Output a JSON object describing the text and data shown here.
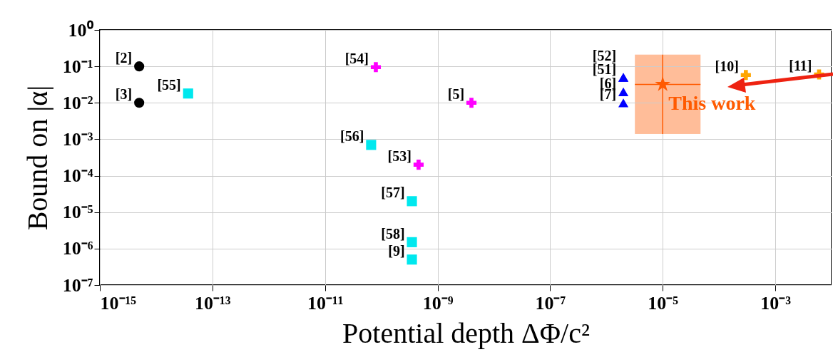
{
  "chart_data": {
    "type": "scatter",
    "xlabel": "Potential depth ΔΦ/c²",
    "ylabel": "Bound on |α|",
    "log": "xy",
    "grid": true,
    "xlim": [
      1e-15,
      0.01
    ],
    "xticks": [
      {
        "value": 1e-15,
        "label": "10⁻¹⁵"
      },
      {
        "value": 1e-13,
        "label": "10⁻¹³"
      },
      {
        "value": 1e-11,
        "label": "10⁻¹¹"
      },
      {
        "value": 1e-09,
        "label": "10⁻⁹"
      },
      {
        "value": 1e-07,
        "label": "10⁻⁷"
      },
      {
        "value": 1e-05,
        "label": "10⁻⁵"
      },
      {
        "value": 0.001,
        "label": "10⁻³"
      }
    ],
    "ylim": [
      1e-07,
      1
    ],
    "yticks": [
      {
        "value": 1,
        "label": "10⁰"
      },
      {
        "value": 0.1,
        "label": "10⁻¹"
      },
      {
        "value": 0.01,
        "label": "10⁻²"
      },
      {
        "value": 0.001,
        "label": "10⁻³"
      },
      {
        "value": 0.0001,
        "label": "10⁻⁴"
      },
      {
        "value": 1e-05,
        "label": "10⁻⁵"
      },
      {
        "value": 1e-06,
        "label": "10⁻⁶"
      },
      {
        "value": 1e-07,
        "label": "10⁻⁷"
      }
    ],
    "series": [
      {
        "color": "#000000",
        "marker": "circle",
        "x": [
          5e-15,
          5e-15
        ],
        "values": [
          0.1,
          0.01
        ]
      },
      {
        "color": "#00e8ee",
        "marker": "square",
        "x": [
          3.7e-14,
          6.6e-11,
          3.5e-10,
          3.5e-10,
          3.5e-10
        ],
        "values": [
          0.018,
          0.0007,
          2e-05,
          1.5e-06,
          5e-07
        ]
      },
      {
        "color": "#ff00ff",
        "marker": "cross",
        "x": [
          8e-11,
          4e-09,
          4.6e-10
        ],
        "values": [
          0.095,
          0.01,
          0.0002
        ]
      },
      {
        "color": "#0000ff",
        "marker": "triangle",
        "x": [
          2e-06,
          2e-06,
          2e-06,
          2e-06
        ],
        "values": [
          0.05,
          0.05,
          0.02,
          0.01
        ]
      },
      {
        "color": "#ffa500",
        "marker": "cross",
        "x": [
          0.0003,
          0.006
        ],
        "values": [
          0.058,
          0.06
        ]
      },
      {
        "name": "This work",
        "color": "#ff5a00",
        "marker": "star",
        "x": [
          1e-05
        ],
        "values": [
          0.032
        ],
        "xerrors": [
          [
            3.2e-06,
            4.7e-05
          ]
        ],
        "errors": [
          [
            0.0014,
            0.21
          ]
        ]
      }
    ],
    "annotations": [
      {
        "text": "[2]",
        "x": 5e-15,
        "y": 0.1
      },
      {
        "text": "[3]",
        "x": 5e-15,
        "y": 0.01
      },
      {
        "text": "[55]",
        "x": 3.7e-14,
        "y": 0.018
      },
      {
        "text": "[54]",
        "x": 8e-11,
        "y": 0.095
      },
      {
        "text": "[5]",
        "x": 4e-09,
        "y": 0.01
      },
      {
        "text": "[56]",
        "x": 6.6e-11,
        "y": 0.0007
      },
      {
        "text": "[53]",
        "x": 4.6e-10,
        "y": 0.0002
      },
      {
        "text": "[57]",
        "x": 3.5e-10,
        "y": 2e-05
      },
      {
        "text": "[58]",
        "x": 3.5e-10,
        "y": 1.5e-06
      },
      {
        "text": "[9]",
        "x": 3.5e-10,
        "y": 5e-07
      },
      {
        "text": "[51]",
        "x": 2e-06,
        "y": 0.05
      },
      {
        "text": "[52]",
        "x": 2e-06,
        "y": 0.05
      },
      {
        "text": "[6]",
        "x": 2e-06,
        "y": 0.02
      },
      {
        "text": "[7]",
        "x": 2e-06,
        "y": 0.01
      },
      {
        "text": "[10]",
        "x": 0.0003,
        "y": 0.058
      },
      {
        "text": "[11]",
        "x": 0.006,
        "y": 0.06
      }
    ]
  }
}
